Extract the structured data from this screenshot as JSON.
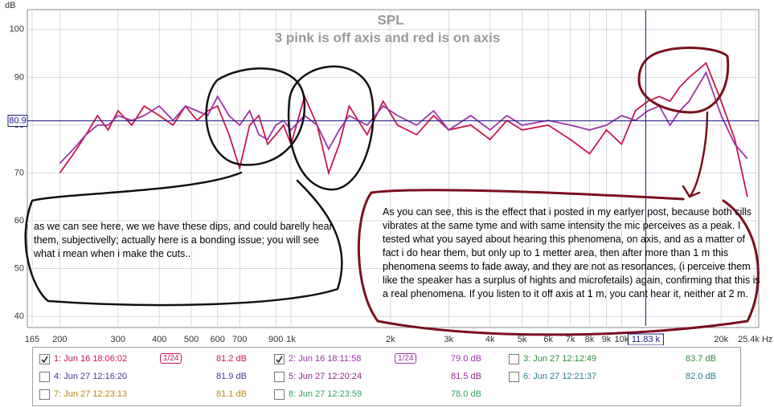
{
  "chart_data": {
    "type": "line",
    "title": "SPL",
    "subtitle": "3 pink is off axis and red is on axis",
    "y_label": "dB",
    "log_x": true,
    "grid": true,
    "xlim": [
      165,
      25400
    ],
    "xticks": [
      165,
      200,
      300,
      400,
      500,
      600,
      700,
      900,
      {
        "value": 1000,
        "label": "1k"
      },
      {
        "value": 2000,
        "label": "2k"
      },
      {
        "value": 3000,
        "label": "3k"
      },
      {
        "value": 4000,
        "label": "4k"
      },
      {
        "value": 5000,
        "label": "5k"
      },
      {
        "value": 6000,
        "label": "6k"
      },
      {
        "value": 7000,
        "label": "7k"
      },
      {
        "value": 8000,
        "label": "8k"
      },
      {
        "value": 9000,
        "label": "9k"
      },
      {
        "value": 10000,
        "label": "10k"
      },
      {
        "value": 20000,
        "label": "20k"
      },
      {
        "value": 25400,
        "label": "25.4k Hz"
      }
    ],
    "ylim": [
      38,
      104
    ],
    "yticks": [
      40,
      50,
      60,
      70,
      80,
      90,
      100
    ],
    "cursor": {
      "y": 80.9,
      "x": {
        "value": 11830,
        "label": "11.83 k"
      }
    },
    "x": [
      200,
      220,
      240,
      260,
      280,
      300,
      330,
      360,
      400,
      440,
      480,
      520,
      560,
      600,
      650,
      700,
      750,
      800,
      850,
      900,
      950,
      1000,
      1100,
      1200,
      1300,
      1400,
      1500,
      1700,
      1900,
      2100,
      2400,
      2700,
      3000,
      3500,
      4000,
      4500,
      5000,
      6000,
      7000,
      8000,
      9000,
      10000,
      11000,
      12000,
      13000,
      14000,
      15000,
      16000,
      18000,
      20000,
      22000,
      24000
    ],
    "series": [
      {
        "name": "1: Jun 16 18:06:02",
        "color": "#c8174a",
        "checked": true,
        "smoothing": "1/24",
        "level": "81.2 dB",
        "values": [
          70,
          74,
          78,
          82,
          79,
          83,
          80,
          84,
          82,
          80,
          84,
          81,
          83,
          84,
          78,
          71,
          80,
          82,
          76,
          78,
          80,
          76,
          86,
          80,
          70,
          76,
          84,
          78,
          85,
          80,
          78,
          82,
          79,
          80,
          77,
          81,
          79,
          80,
          77,
          74,
          79,
          76,
          83,
          85,
          86,
          85,
          88,
          90,
          93,
          85,
          77,
          65
        ]
      },
      {
        "name": "2: Jun 16 18:11:58",
        "color": "#9b35a8",
        "checked": true,
        "smoothing": "1/24",
        "level": "79.0 dB",
        "values": [
          72,
          75,
          78,
          80,
          80,
          82,
          81,
          82,
          84,
          81,
          84,
          83,
          82,
          86,
          82,
          80,
          83,
          78,
          77,
          80,
          81,
          79,
          82,
          80,
          75,
          79,
          82,
          80,
          84,
          82,
          80,
          83,
          79,
          82,
          79,
          82,
          80,
          81,
          80,
          79,
          80,
          82,
          81,
          83,
          84,
          80,
          83,
          85,
          91,
          82,
          76,
          73
        ]
      }
    ]
  },
  "other_measurements": [
    {
      "name": "3: Jun 27 12:12:49",
      "color": "#2e8b3a",
      "checked": false,
      "level": "83.7 dB"
    },
    {
      "name": "4: Jun 27 12:16:20",
      "color": "#3c3ca0",
      "checked": false,
      "level": "81.9 dB"
    },
    {
      "name": "5: Jun 27 12:20:24",
      "color": "#8a2a8a",
      "checked": false,
      "level": "81.5 dB"
    },
    {
      "name": "6: Jun 27 12:21:37",
      "color": "#2a7a8a",
      "checked": false,
      "level": "82.0 dB"
    },
    {
      "name": "7: Jun 27 12:23:13",
      "color": "#b8860b",
      "checked": false,
      "level": "81.1 dB"
    },
    {
      "name": "8: Jun 27 12:23:59",
      "color": "#30a060",
      "checked": false,
      "level": "78.0 dB"
    }
  ],
  "annotations": [
    "as we can see here, we we have these dips, and could barelly hear them, subjectivelly; actually here is a bonding issue; you will see what i mean when i make the cuts..",
    "As you can see, this is the effect that i posted in my earlyer post, because both cills vibrates at the same tyme and with same intensity the mic perceives as a peak. I tested what you sayed about hearing this phenomena, on axis, and as a matter of fact i do hear them, but only up to 1  metter area, then after more than 1 m this phenomena seems to fade away, and they are not as resonances, (i perceive them like the speaker has a surplus of hights and microfetails) again, confirming that this is a real phenomena. If you listen to it off axis at 1 m, you cant hear it, neither at 2 m."
  ]
}
